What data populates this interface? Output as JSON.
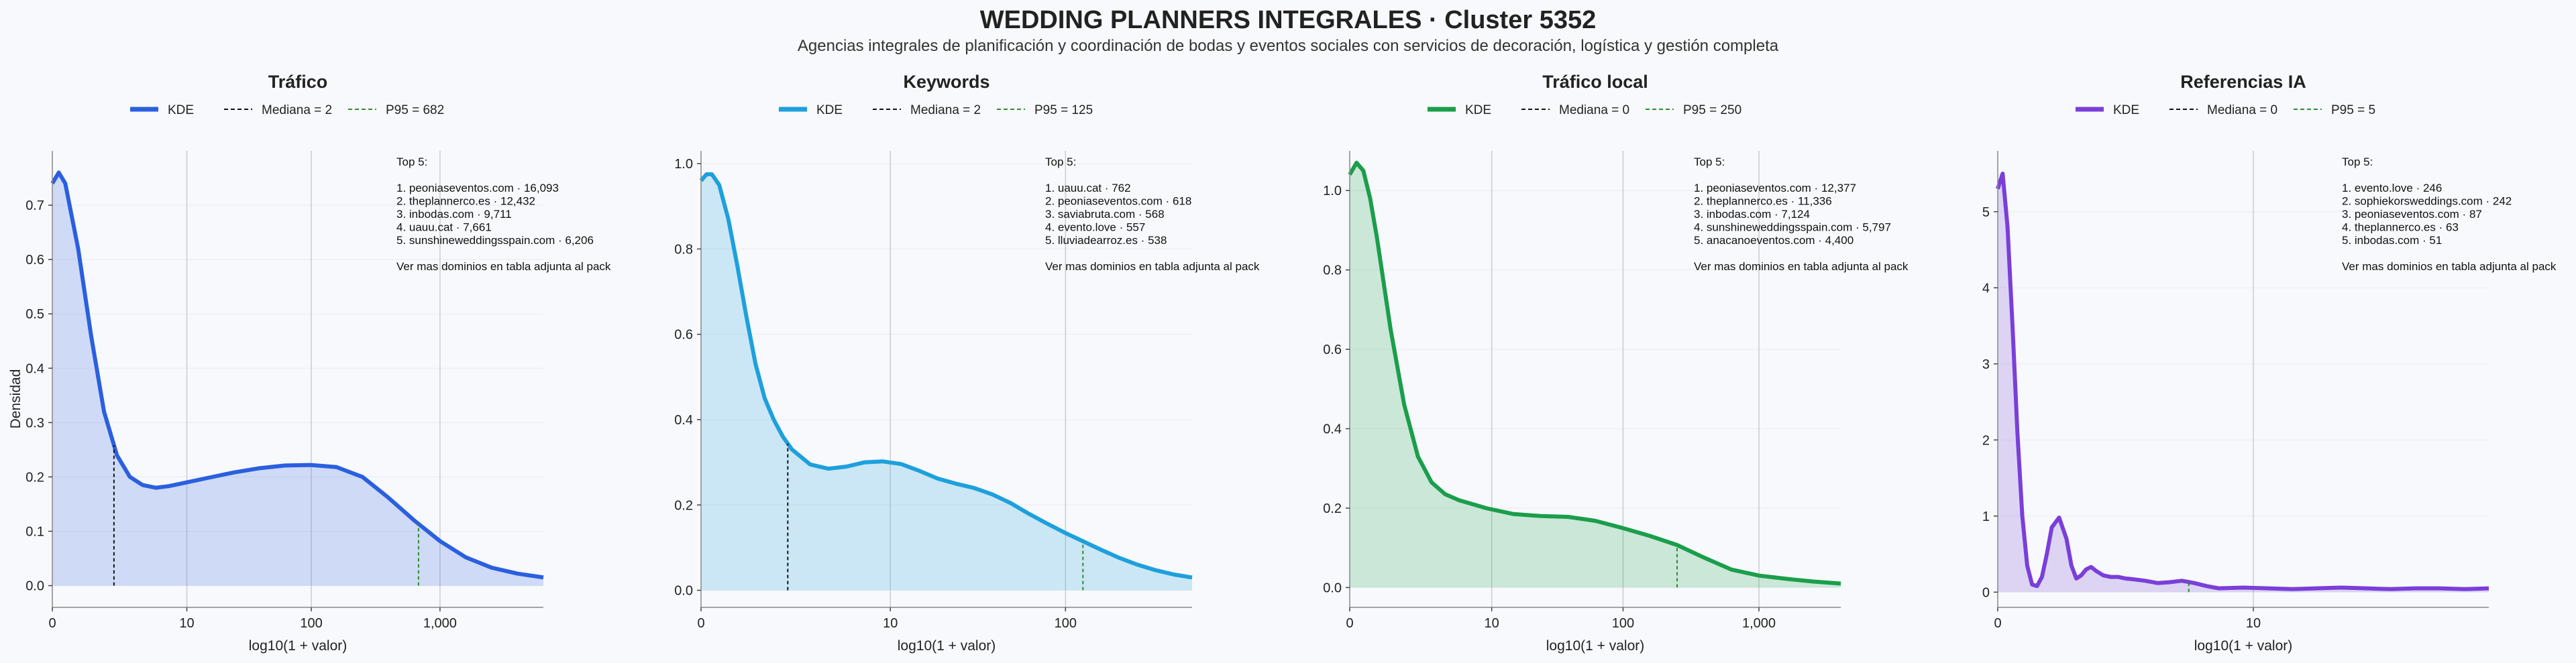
{
  "title": "WEDDING PLANNERS INTEGRALES · Cluster 5352",
  "subtitle": "Agencias integrales de planificación y coordinación de bodas y eventos sociales con servicios de decoración, logística y gestión completa",
  "ylabel": "Densidad",
  "colors": {
    "trafico": "#2b5fe0",
    "keywords": "#1ea0dc",
    "local": "#1b9e4b",
    "ia": "#7a3fd9",
    "median": "#111111",
    "p95": "#2e8b2e",
    "grid": "#cccccc"
  },
  "chart_data": [
    {
      "type": "area",
      "title": "Tráfico",
      "xlabel": "log10(1 + valor)",
      "ylabel": "Densidad",
      "legend": [
        "KDE",
        "Mediana = 2",
        "P95 = 682"
      ],
      "x_ticks": [
        "0",
        "10",
        "100",
        "1,000"
      ],
      "x_tick_values": [
        0,
        1.041,
        2.004,
        3.0
      ],
      "xlim": [
        0,
        3.8
      ],
      "ylim": [
        -0.04,
        0.8
      ],
      "y_ticks": [
        "0.0",
        "0.1",
        "0.2",
        "0.3",
        "0.4",
        "0.5",
        "0.6",
        "0.7"
      ],
      "y_tick_values": [
        0,
        0.1,
        0.2,
        0.3,
        0.4,
        0.5,
        0.6,
        0.7
      ],
      "median": 0.477,
      "p95": 2.834,
      "x": [
        0,
        0.05,
        0.1,
        0.2,
        0.3,
        0.4,
        0.5,
        0.6,
        0.7,
        0.8,
        0.9,
        1.0,
        1.2,
        1.4,
        1.6,
        1.8,
        2.0,
        2.2,
        2.4,
        2.6,
        2.8,
        3.0,
        3.2,
        3.4,
        3.6,
        3.8
      ],
      "y": [
        0.74,
        0.76,
        0.74,
        0.62,
        0.46,
        0.32,
        0.24,
        0.2,
        0.185,
        0.18,
        0.183,
        0.188,
        0.198,
        0.208,
        0.216,
        0.221,
        0.222,
        0.218,
        0.2,
        0.162,
        0.12,
        0.082,
        0.052,
        0.033,
        0.022,
        0.015
      ],
      "top_lines": [
        "Top 5:",
        "",
        "1. peoniaseventos.com · 16,093",
        "2. theplannerco.es · 12,432",
        "3. inbodas.com · 9,711",
        "4. uauu.cat · 7,661",
        "5. sunshineweddingsspain.com · 6,206",
        "",
        "Ver mas dominios en tabla adjunta al pack"
      ]
    },
    {
      "type": "area",
      "title": "Keywords",
      "xlabel": "log10(1 + valor)",
      "legend": [
        "KDE",
        "Mediana = 2",
        "P95 = 125"
      ],
      "x_ticks": [
        "0",
        "10",
        "100"
      ],
      "x_tick_values": [
        0,
        1.041,
        2.004
      ],
      "xlim": [
        0,
        2.7
      ],
      "ylim": [
        -0.04,
        1.03
      ],
      "y_ticks": [
        "0.0",
        "0.2",
        "0.4",
        "0.6",
        "0.8",
        "1.0"
      ],
      "y_tick_values": [
        0,
        0.2,
        0.4,
        0.6,
        0.8,
        1.0
      ],
      "median": 0.477,
      "p95": 2.1,
      "x": [
        0,
        0.03,
        0.06,
        0.1,
        0.15,
        0.2,
        0.25,
        0.3,
        0.35,
        0.4,
        0.45,
        0.5,
        0.6,
        0.7,
        0.8,
        0.9,
        1.0,
        1.1,
        1.2,
        1.3,
        1.4,
        1.5,
        1.6,
        1.7,
        1.8,
        1.9,
        2.0,
        2.1,
        2.2,
        2.3,
        2.4,
        2.5,
        2.6,
        2.7
      ],
      "y": [
        0.96,
        0.975,
        0.975,
        0.95,
        0.87,
        0.76,
        0.64,
        0.53,
        0.45,
        0.4,
        0.36,
        0.33,
        0.295,
        0.285,
        0.29,
        0.3,
        0.302,
        0.296,
        0.28,
        0.262,
        0.25,
        0.24,
        0.225,
        0.205,
        0.18,
        0.157,
        0.135,
        0.115,
        0.095,
        0.076,
        0.06,
        0.047,
        0.037,
        0.03
      ],
      "top_lines": [
        "Top 5:",
        "",
        "1. uauu.cat · 762",
        "2. peoniaseventos.com · 618",
        "3. saviabruta.com · 568",
        "4. evento.love · 557",
        "5. lluviadearroz.es · 538",
        "",
        "Ver mas dominios en tabla adjunta al pack"
      ]
    },
    {
      "type": "area",
      "title": "Tráfico local",
      "xlabel": "log10(1 + valor)",
      "legend": [
        "KDE",
        "Mediana = 0",
        "P95 = 250"
      ],
      "x_ticks": [
        "0",
        "10",
        "100",
        "1,000"
      ],
      "x_tick_values": [
        0,
        1.041,
        2.004,
        3.0
      ],
      "xlim": [
        0,
        3.6
      ],
      "ylim": [
        -0.05,
        1.1
      ],
      "y_ticks": [
        "0.0",
        "0.2",
        "0.4",
        "0.6",
        "0.8",
        "1.0"
      ],
      "y_tick_values": [
        0,
        0.2,
        0.4,
        0.6,
        0.8,
        1.0
      ],
      "median": 0,
      "p95": 2.4,
      "x": [
        0,
        0.05,
        0.1,
        0.15,
        0.2,
        0.3,
        0.4,
        0.5,
        0.6,
        0.7,
        0.8,
        0.9,
        1.0,
        1.2,
        1.4,
        1.6,
        1.8,
        2.0,
        2.2,
        2.4,
        2.6,
        2.8,
        3.0,
        3.2,
        3.4,
        3.6
      ],
      "y": [
        1.04,
        1.07,
        1.05,
        0.98,
        0.88,
        0.65,
        0.46,
        0.33,
        0.265,
        0.235,
        0.22,
        0.21,
        0.2,
        0.185,
        0.18,
        0.178,
        0.168,
        0.15,
        0.13,
        0.107,
        0.075,
        0.045,
        0.03,
        0.022,
        0.015,
        0.01
      ],
      "top_lines": [
        "Top 5:",
        "",
        "1. peoniaseventos.com · 12,377",
        "2. theplannerco.es · 11,336",
        "3. inbodas.com · 7,124",
        "4. sunshineweddingsspain.com · 5,797",
        "5. anacanoeventos.com · 4,400",
        "",
        "Ver mas dominios en tabla adjunta al pack"
      ]
    },
    {
      "type": "area",
      "title": "Referencias IA",
      "xlabel": "log10(1 + valor)",
      "legend": [
        "KDE",
        "Mediana = 0",
        "P95 = 5"
      ],
      "x_ticks": [
        "0",
        "10"
      ],
      "x_tick_values": [
        0,
        1.041
      ],
      "xlim": [
        0,
        2.0
      ],
      "ylim": [
        -0.2,
        5.8
      ],
      "y_ticks": [
        "0",
        "1",
        "2",
        "3",
        "4",
        "5"
      ],
      "y_tick_values": [
        0,
        1,
        2,
        3,
        4,
        5
      ],
      "median": 0,
      "p95": 0.778,
      "x": [
        0,
        0.02,
        0.04,
        0.06,
        0.08,
        0.1,
        0.12,
        0.14,
        0.16,
        0.18,
        0.2,
        0.22,
        0.25,
        0.28,
        0.3,
        0.32,
        0.34,
        0.36,
        0.38,
        0.4,
        0.43,
        0.46,
        0.49,
        0.52,
        0.55,
        0.6,
        0.65,
        0.7,
        0.75,
        0.8,
        0.85,
        0.9,
        1.0,
        1.1,
        1.2,
        1.3,
        1.4,
        1.5,
        1.6,
        1.7,
        1.8,
        1.9,
        2.0
      ],
      "y": [
        5.3,
        5.5,
        4.8,
        3.5,
        2.1,
        1.0,
        0.35,
        0.1,
        0.08,
        0.2,
        0.5,
        0.85,
        0.98,
        0.7,
        0.35,
        0.18,
        0.22,
        0.3,
        0.33,
        0.28,
        0.22,
        0.2,
        0.2,
        0.18,
        0.17,
        0.15,
        0.12,
        0.13,
        0.15,
        0.12,
        0.08,
        0.05,
        0.06,
        0.05,
        0.04,
        0.05,
        0.06,
        0.05,
        0.04,
        0.05,
        0.05,
        0.04,
        0.05
      ],
      "top_lines": [
        "Top 5:",
        "",
        "1. evento.love · 246",
        "2. sophiekorsweddings.com · 242",
        "3. peoniaseventos.com · 87",
        "4. theplannerco.es · 63",
        "5. inbodas.com · 51",
        "",
        "Ver mas dominios en tabla adjunta al pack"
      ]
    }
  ]
}
